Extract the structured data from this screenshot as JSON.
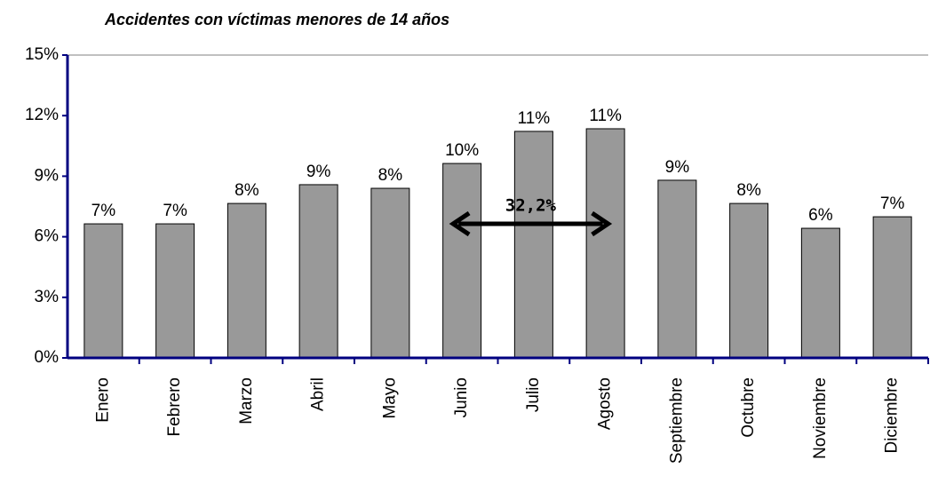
{
  "chart_data": {
    "type": "bar",
    "title": "Accidentes con víctimas menores de 14 años",
    "categories": [
      "Enero",
      "Febrero",
      "Marzo",
      "Abril",
      "Mayo",
      "Junio",
      "Julio",
      "Agosto",
      "Septiembre",
      "Octubre",
      "Noviembre",
      "Diciembre"
    ],
    "values": [
      6.64,
      6.64,
      7.65,
      8.58,
      8.4,
      9.63,
      11.22,
      11.35,
      8.8,
      7.65,
      6.42,
      6.99
    ],
    "value_labels": [
      "7%",
      "7%",
      "8%",
      "9%",
      "8%",
      "10%",
      "11%",
      "11%",
      "9%",
      "8%",
      "6%",
      "7%"
    ],
    "color": "#999999",
    "ylim": [
      0,
      15
    ],
    "yticks": [
      {
        "value": 0,
        "label": "0%"
      },
      {
        "value": 3,
        "label": "3%"
      },
      {
        "value": 6,
        "label": "6%"
      },
      {
        "value": 9,
        "label": "9%"
      },
      {
        "value": 12,
        "label": "12%"
      },
      {
        "value": 15,
        "label": "15%"
      }
    ],
    "annotation": "32,2%"
  }
}
